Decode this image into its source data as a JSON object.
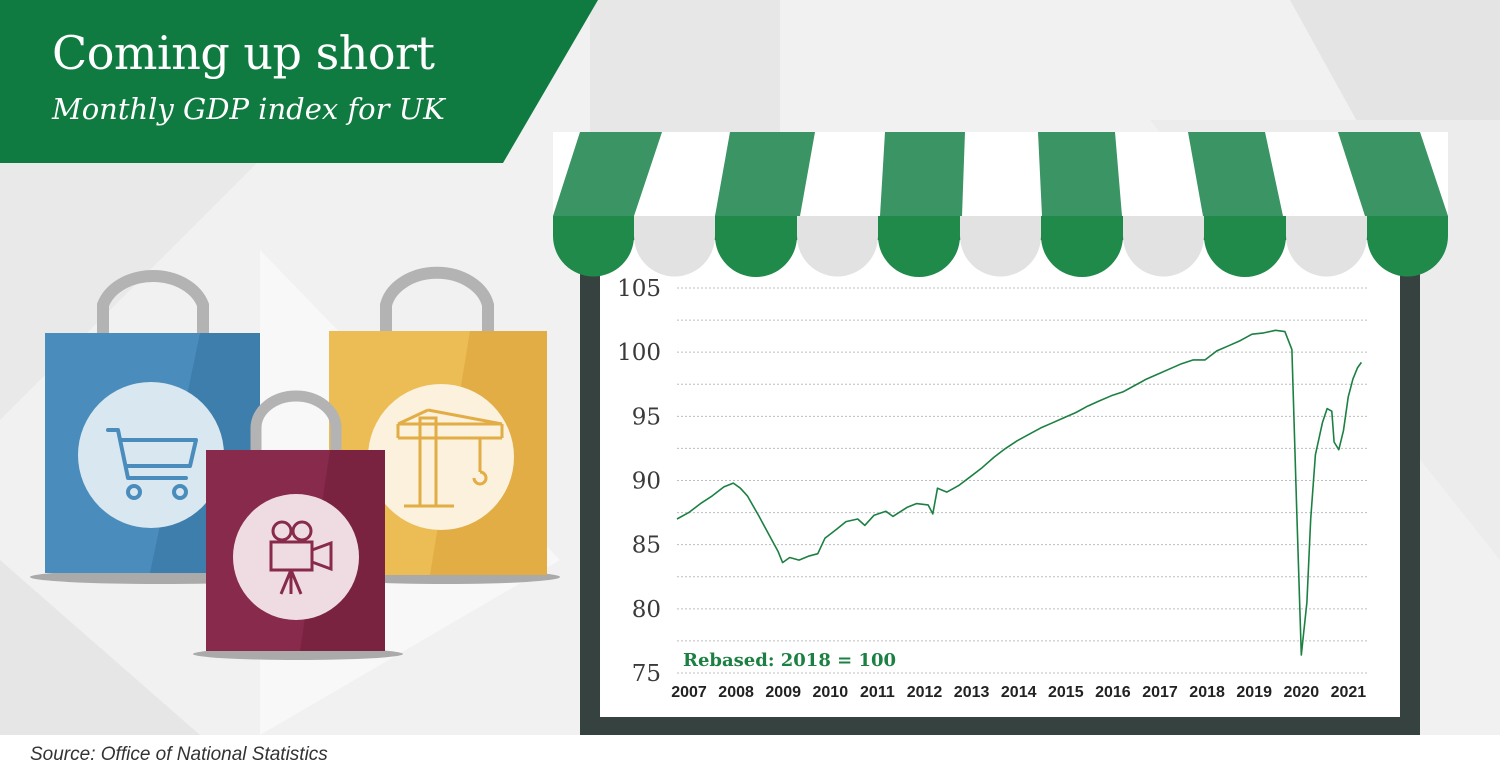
{
  "title": "Coming up short",
  "subtitle": "Monthly GDP index for UK",
  "source": "Source: Office of National Statistics",
  "colors": {
    "brand_green": "#0f7b40",
    "line_green": "#1d8043",
    "awning_green": "#1f8a4a",
    "frame": "#36423f",
    "bag_blue": "#4a8cbc",
    "bag_yellow": "#ecbc55",
    "bag_maroon": "#882a4b"
  },
  "icons": [
    "shopping-cart-icon",
    "construction-crane-icon",
    "film-camera-icon"
  ],
  "chart_data": {
    "type": "line",
    "title": "Coming up short",
    "subtitle": "Monthly GDP index for UK",
    "annotation": "Rebased: 2018 = 100",
    "ylim": [
      75,
      105
    ],
    "yticks": [
      105,
      100,
      95,
      90,
      85,
      80,
      75
    ],
    "xlim": [
      2007,
      2021.7
    ],
    "xticks": [
      "2007",
      "2008",
      "2009",
      "2010",
      "2011",
      "2012",
      "2013",
      "2014",
      "2015",
      "2016",
      "2017",
      "2018",
      "2019",
      "2020",
      "2021"
    ],
    "grid": true,
    "legend": "none",
    "series": [
      {
        "points": [
          [
            2007.0,
            87.0
          ],
          [
            2007.25,
            87.5
          ],
          [
            2007.5,
            88.2
          ],
          [
            2007.75,
            88.8
          ],
          [
            2008.0,
            89.5
          ],
          [
            2008.2,
            89.8
          ],
          [
            2008.35,
            89.4
          ],
          [
            2008.5,
            88.8
          ],
          [
            2008.75,
            87.2
          ],
          [
            2009.0,
            85.5
          ],
          [
            2009.15,
            84.5
          ],
          [
            2009.25,
            83.6
          ],
          [
            2009.4,
            84.0
          ],
          [
            2009.6,
            83.8
          ],
          [
            2009.8,
            84.1
          ],
          [
            2010.0,
            84.3
          ],
          [
            2010.15,
            85.5
          ],
          [
            2010.4,
            86.2
          ],
          [
            2010.6,
            86.8
          ],
          [
            2010.85,
            87.0
          ],
          [
            2011.0,
            86.5
          ],
          [
            2011.2,
            87.3
          ],
          [
            2011.45,
            87.6
          ],
          [
            2011.6,
            87.2
          ],
          [
            2011.9,
            87.9
          ],
          [
            2012.1,
            88.2
          ],
          [
            2012.35,
            88.1
          ],
          [
            2012.45,
            87.4
          ],
          [
            2012.55,
            89.4
          ],
          [
            2012.75,
            89.1
          ],
          [
            2013.0,
            89.6
          ],
          [
            2013.25,
            90.3
          ],
          [
            2013.5,
            91.0
          ],
          [
            2013.75,
            91.8
          ],
          [
            2014.0,
            92.5
          ],
          [
            2014.25,
            93.1
          ],
          [
            2014.5,
            93.6
          ],
          [
            2014.75,
            94.1
          ],
          [
            2015.0,
            94.5
          ],
          [
            2015.25,
            94.9
          ],
          [
            2015.5,
            95.3
          ],
          [
            2015.75,
            95.8
          ],
          [
            2016.0,
            96.2
          ],
          [
            2016.25,
            96.6
          ],
          [
            2016.5,
            96.9
          ],
          [
            2016.75,
            97.4
          ],
          [
            2017.0,
            97.9
          ],
          [
            2017.25,
            98.3
          ],
          [
            2017.5,
            98.7
          ],
          [
            2017.75,
            99.1
          ],
          [
            2018.0,
            99.4
          ],
          [
            2018.25,
            99.4
          ],
          [
            2018.5,
            100.1
          ],
          [
            2018.75,
            100.5
          ],
          [
            2019.0,
            100.9
          ],
          [
            2019.25,
            101.4
          ],
          [
            2019.5,
            101.5
          ],
          [
            2019.75,
            101.7
          ],
          [
            2019.95,
            101.6
          ],
          [
            2020.1,
            100.2
          ],
          [
            2020.2,
            88.0
          ],
          [
            2020.3,
            76.4
          ],
          [
            2020.42,
            80.5
          ],
          [
            2020.5,
            87.0
          ],
          [
            2020.6,
            92.0
          ],
          [
            2020.75,
            94.5
          ],
          [
            2020.85,
            95.6
          ],
          [
            2020.95,
            95.4
          ],
          [
            2021.0,
            93.0
          ],
          [
            2021.1,
            92.4
          ],
          [
            2021.2,
            93.9
          ],
          [
            2021.3,
            96.5
          ],
          [
            2021.4,
            97.9
          ],
          [
            2021.5,
            98.8
          ],
          [
            2021.58,
            99.2
          ]
        ]
      }
    ]
  }
}
